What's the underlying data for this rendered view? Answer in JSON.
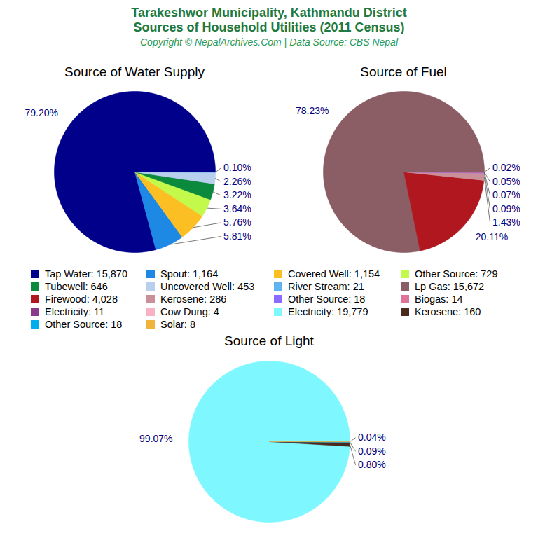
{
  "title": "Tarakeshwor Municipality, Kathmandu District\nSources of Household Utilities (2011 Census)",
  "subtitle": "Copyright © NepalArchives.Com | Data Source: CBS Nepal",
  "chart_data": [
    {
      "type": "pie",
      "title": "Source of Water Supply",
      "categories": [
        "Tap Water: 15,870",
        "Spout: 1,164",
        "Covered Well: 1,154",
        "Other Source: 729",
        "Tubewell: 646",
        "Uncovered Well: 453",
        "River Stream: 21"
      ],
      "values": [
        79.2,
        5.81,
        5.76,
        3.64,
        3.22,
        2.26,
        0.1
      ],
      "value_labels": [
        "79.20%",
        "5.81%",
        "5.76%",
        "3.64%",
        "3.22%",
        "2.26%",
        "0.10%"
      ],
      "colors": [
        "#00008b",
        "#1e88e5",
        "#fbbf24",
        "#c2f94a",
        "#0b8a3e",
        "#b8cfee",
        "#5fb3f0"
      ],
      "data_labels": true,
      "tick_labels": false,
      "legend": "center"
    },
    {
      "type": "pie",
      "title": "Source of Fuel",
      "categories": [
        "Lp Gas: 15,672",
        "Firewood: 4,028",
        "Kerosene: 286",
        "Other Source: 18",
        "Biogas: 14",
        "Electricity: 11",
        "Cow Dung: 4"
      ],
      "values": [
        78.23,
        20.11,
        1.43,
        0.09,
        0.07,
        0.05,
        0.02
      ],
      "value_labels": [
        "78.23%",
        "20.11%",
        "1.43%",
        "0.09%",
        "0.07%",
        "0.05%",
        "0.02%"
      ],
      "colors": [
        "#8b5e66",
        "#b0171f",
        "#c9909a",
        "#8a6bff",
        "#e0739a",
        "#8b3a8b",
        "#f7b3c3"
      ],
      "data_labels": true,
      "tick_labels": false,
      "legend": "center"
    },
    {
      "type": "pie",
      "title": "Source of Light",
      "categories": [
        "Electricity: 19,779",
        "Kerosene: 160",
        "Other Source: 18",
        "Solar: 8"
      ],
      "values": [
        99.07,
        0.8,
        0.09,
        0.04
      ],
      "value_labels": [
        "99.07%",
        "0.80%",
        "0.09%",
        "0.04%"
      ],
      "colors": [
        "#7ff7ff",
        "#4a2a1e",
        "#00aeef",
        "#f2b33d"
      ],
      "data_labels": true,
      "tick_labels": false,
      "legend": "center"
    }
  ]
}
